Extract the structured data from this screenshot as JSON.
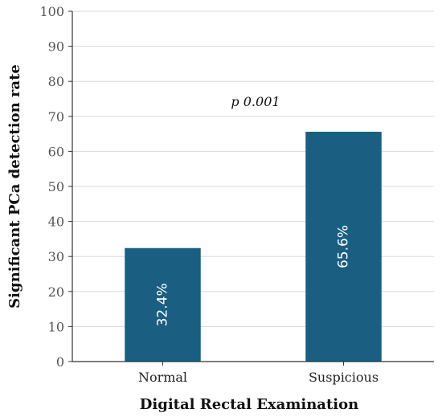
{
  "chart_data": {
    "type": "bar",
    "categories": [
      "Normal",
      "Suspicious"
    ],
    "values": [
      32.4,
      65.6
    ],
    "value_labels": [
      "32.4%",
      "65.6%"
    ],
    "xlabel": "Digital Rectal Examination",
    "ylabel": "Significant PCa detection rate",
    "ylim": [
      0,
      100
    ],
    "yticks": [
      0,
      10,
      20,
      30,
      40,
      50,
      60,
      70,
      80,
      90,
      100
    ],
    "annotation": "p 0.001",
    "grid": true,
    "bar_color": "#1a5e82",
    "grid_color": "#d9d9d9"
  }
}
